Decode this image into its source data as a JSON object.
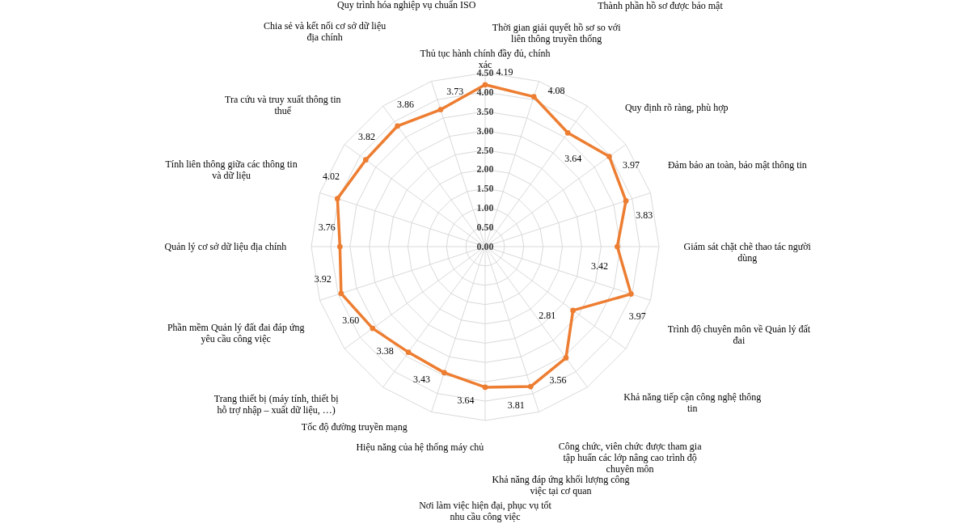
{
  "chart_data": {
    "type": "radar",
    "categories": [
      "Thủ tục hành chính đầy đủ, chính xác",
      "Thời gian giải quyết hồ sơ so với liên thông truyền thống",
      "Thành phần hồ sơ được bảo mật",
      "Quy định rõ ràng, phù hợp",
      "Đảm bảo an toàn, bảo mật thông tin",
      "Giám sát chặt chẽ thao tác người dùng",
      "Trình độ chuyên môn về Quản lý đất đai",
      "Khả năng tiếp cận công nghệ thông tin",
      "Công chức, viên chức được tham gia tập huấn các lớp nâng cao trình độ chuyên môn",
      "Khả năng đáp ứng khối lượng công việc tại cơ quan",
      "Nơi làm việc hiện đại, phục vụ tốt nhu cầu công việc",
      "Hiệu năng của hệ thống máy chủ",
      "Tốc độ đường truyền mạng",
      "Trang thiết bị (máy tính, thiết bị hỗ trợ nhập – xuất dữ liệu, …)",
      "Phần mềm Quản lý đất đai đáp ứng yêu cầu công việc",
      "Quản lý cơ sở dữ liệu địa chính",
      "Tính liên thông giữa các thông tin và dữ liệu",
      "Tra cứu và truy xuất thông tin thuế",
      "Chia sẻ và kết nối cơ sở dữ liệu địa chính",
      "Quy trình hóa nghiệp vụ chuẩn ISO"
    ],
    "series": [
      {
        "color": "#ed7d31",
        "values": [
          4.19,
          4.08,
          3.64,
          3.97,
          3.83,
          3.42,
          3.97,
          2.81,
          3.56,
          3.81,
          3.64,
          3.43,
          3.38,
          3.6,
          3.92,
          3.76,
          4.02,
          3.82,
          3.86,
          3.73
        ],
        "value_labels": [
          "4.19",
          "4.08",
          "3.64",
          "3.97",
          "3.83",
          "3.42",
          "3.97",
          "2.81",
          "3.56",
          "3.81",
          "3.64",
          "3.43",
          "3.38",
          "3.60",
          "3.92",
          "3.76",
          "4.02",
          "3.82",
          "3.86",
          "3.73"
        ]
      }
    ],
    "ylim": [
      0,
      4.5
    ],
    "yticks": [
      {
        "value": 0,
        "label": "0.00"
      },
      {
        "value": 0.5,
        "label": "0.50"
      },
      {
        "value": 1,
        "label": "1.00"
      },
      {
        "value": 1.5,
        "label": "1.50"
      },
      {
        "value": 2,
        "label": "2.00"
      },
      {
        "value": 2.5,
        "label": "2.50"
      },
      {
        "value": 3,
        "label": "3.00"
      },
      {
        "value": 3.5,
        "label": "3.50"
      },
      {
        "value": 4,
        "label": "4.00"
      },
      {
        "value": 4.5,
        "label": "4.50"
      }
    ],
    "grid": true,
    "marker": "circle"
  }
}
